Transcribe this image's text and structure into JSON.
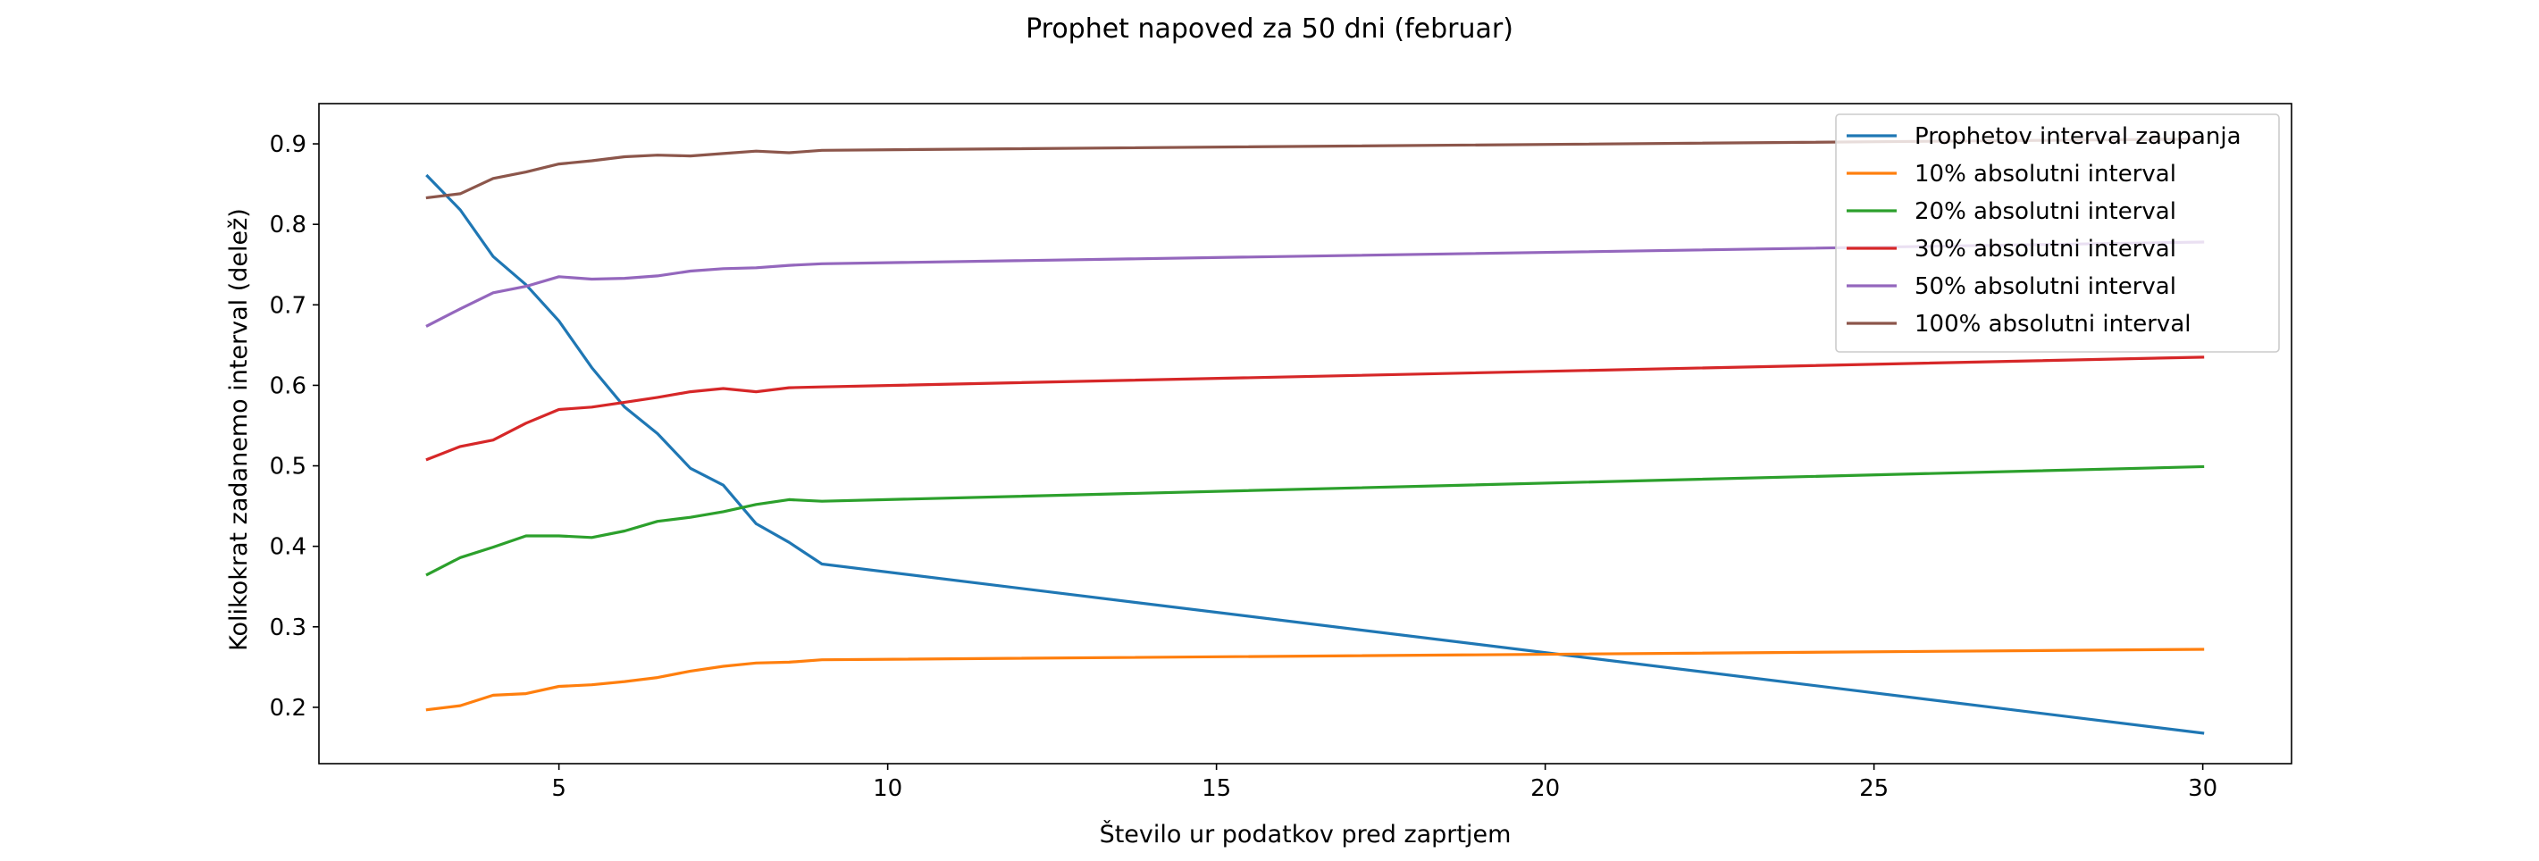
{
  "chart_data": {
    "type": "line",
    "title": "Prophet napoved za 50 dni (februar)",
    "xlabel": "Število ur podatkov pred zaprtjem",
    "ylabel": "Kolikokrat zadanemo interval (delež)",
    "xlim": [
      1.35,
      31.35
    ],
    "ylim": [
      0.13,
      0.95
    ],
    "xticks": [
      5,
      10,
      15,
      20,
      25,
      30
    ],
    "yticks": [
      0.2,
      0.3,
      0.4,
      0.5,
      0.6,
      0.7,
      0.8,
      0.9
    ],
    "legend_position": "top-right",
    "grid": false,
    "x": [
      3,
      3.5,
      4,
      4.5,
      5,
      5.5,
      6,
      6.5,
      7,
      7.5,
      8,
      8.5,
      9,
      30
    ],
    "series": [
      {
        "name": "Prophetov interval zaupanja",
        "color": "#1f77b4",
        "values": [
          0.86,
          0.818,
          0.76,
          0.725,
          0.68,
          0.622,
          0.573,
          0.54,
          0.497,
          0.476,
          0.428,
          0.405,
          0.378,
          0.168
        ]
      },
      {
        "name": "10% absolutni interval",
        "color": "#ff7f0e",
        "values": [
          0.197,
          0.202,
          0.215,
          0.217,
          0.226,
          0.228,
          0.232,
          0.237,
          0.245,
          0.251,
          0.255,
          0.256,
          0.259,
          0.272
        ]
      },
      {
        "name": "20% absolutni interval",
        "color": "#2ca02c",
        "values": [
          0.365,
          0.386,
          0.399,
          0.413,
          0.413,
          0.411,
          0.419,
          0.431,
          0.436,
          0.443,
          0.452,
          0.458,
          0.456,
          0.499
        ]
      },
      {
        "name": "30% absolutni interval",
        "color": "#d62728",
        "values": [
          0.508,
          0.524,
          0.532,
          0.553,
          0.57,
          0.573,
          0.579,
          0.585,
          0.592,
          0.596,
          0.592,
          0.597,
          0.598,
          0.635
        ]
      },
      {
        "name": "50% absolutni interval",
        "color": "#9467bd",
        "values": [
          0.674,
          0.695,
          0.715,
          0.723,
          0.735,
          0.732,
          0.733,
          0.736,
          0.742,
          0.745,
          0.746,
          0.749,
          0.751,
          0.778
        ]
      },
      {
        "name": "100% absolutni interval",
        "color": "#8c564b",
        "values": [
          0.833,
          0.838,
          0.857,
          0.865,
          0.875,
          0.879,
          0.884,
          0.886,
          0.885,
          0.888,
          0.891,
          0.889,
          0.892,
          0.906
        ]
      }
    ]
  }
}
